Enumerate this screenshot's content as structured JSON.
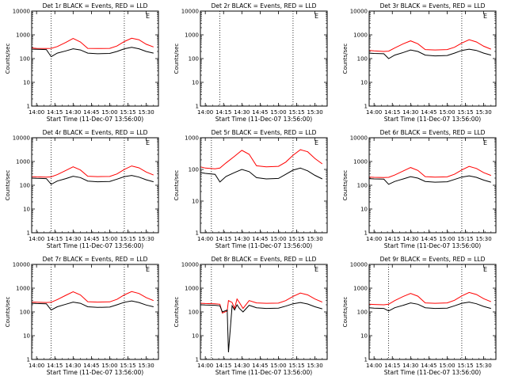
{
  "figure": {
    "start_time_label": "Start Time (11-Dec-07 13:56:00)"
  },
  "colors": {
    "events": "#000000",
    "lld": "#ff0000",
    "axis": "#000000",
    "background": "#ffffff"
  },
  "chart_data": [
    {
      "type": "line",
      "title": "Det 1r BLACK = Events, RED = LLD",
      "xlabel": "Start Time (11-Dec-07 13:56:00)",
      "ylabel": "Counts/sec",
      "x_ticks": [
        "14:00",
        "14:15",
        "14:30",
        "14:45",
        "15:00",
        "15:15",
        "15:30"
      ],
      "y_ticks": [
        "1",
        "10",
        "100",
        "1000",
        "10000"
      ],
      "ylim": [
        1,
        10000
      ],
      "scale": "log",
      "corner_label": "E",
      "has_data": true,
      "markers": [
        "14:12",
        "15:12"
      ],
      "series": [
        {
          "name": "LLD",
          "color": "red",
          "x": [
            "13:56",
            "14:00",
            "14:08",
            "14:12",
            "14:17",
            "14:24",
            "14:30",
            "14:36",
            "14:42",
            "14:50",
            "15:00",
            "15:06",
            "15:12",
            "15:18",
            "15:24",
            "15:30",
            "15:36"
          ],
          "values": [
            280,
            270,
            265,
            270,
            320,
            480,
            700,
            500,
            270,
            265,
            270,
            340,
            520,
            720,
            620,
            400,
            310
          ]
        },
        {
          "name": "Events",
          "color": "black",
          "x": [
            "13:56",
            "14:00",
            "14:08",
            "14:12",
            "14:17",
            "14:24",
            "14:30",
            "14:36",
            "14:42",
            "14:50",
            "15:00",
            "15:06",
            "15:12",
            "15:18",
            "15:24",
            "15:30",
            "15:36"
          ],
          "values": [
            250,
            245,
            240,
            120,
            170,
            210,
            260,
            230,
            170,
            160,
            165,
            200,
            260,
            300,
            260,
            200,
            170
          ]
        }
      ]
    },
    {
      "type": "line",
      "title": "Det 2r BLACK = Events, RED = LLD",
      "xlabel": "Start Time (11-Dec-07 13:56:00)",
      "ylabel": "Counts/sec",
      "x_ticks": [
        "14:00",
        "14:15",
        "14:30",
        "14:45",
        "15:00",
        "15:15",
        "15:30"
      ],
      "y_ticks": [
        "1",
        "10",
        "100",
        "1000",
        "10000"
      ],
      "ylim": [
        1,
        10000
      ],
      "scale": "log",
      "corner_label": "E",
      "has_data": false,
      "markers": [
        "14:12",
        "15:12"
      ],
      "series": []
    },
    {
      "type": "line",
      "title": "Det 3r BLACK = Events, RED = LLD",
      "xlabel": "Start Time (11-Dec-07 13:56:00)",
      "ylabel": "Counts/sec",
      "x_ticks": [
        "14:00",
        "14:15",
        "14:30",
        "14:45",
        "15:00",
        "15:15",
        "15:30"
      ],
      "y_ticks": [
        "1",
        "10",
        "100",
        "1000",
        "10000"
      ],
      "ylim": [
        1,
        10000
      ],
      "scale": "log",
      "corner_label": "E",
      "has_data": true,
      "markers": [
        "15:12"
      ],
      "series": [
        {
          "name": "LLD",
          "color": "red",
          "x": [
            "13:56",
            "14:00",
            "14:08",
            "14:12",
            "14:17",
            "14:24",
            "14:30",
            "14:36",
            "14:42",
            "14:50",
            "15:00",
            "15:06",
            "15:12",
            "15:18",
            "15:24",
            "15:30",
            "15:36"
          ],
          "values": [
            220,
            210,
            200,
            205,
            280,
            420,
            560,
            420,
            240,
            230,
            240,
            300,
            450,
            620,
            500,
            330,
            250
          ]
        },
        {
          "name": "Events",
          "color": "black",
          "x": [
            "13:56",
            "14:00",
            "14:08",
            "14:12",
            "14:17",
            "14:24",
            "14:30",
            "14:36",
            "14:42",
            "14:50",
            "15:00",
            "15:06",
            "15:12",
            "15:18",
            "15:24",
            "15:30",
            "15:36"
          ],
          "values": [
            170,
            165,
            160,
            100,
            140,
            180,
            230,
            200,
            140,
            130,
            135,
            170,
            220,
            250,
            220,
            170,
            140
          ]
        }
      ]
    },
    {
      "type": "line",
      "title": "Det 4r BLACK = Events, RED = LLD",
      "xlabel": "Start Time (11-Dec-07 13:56:00)",
      "ylabel": "Counts/sec",
      "x_ticks": [
        "14:00",
        "14:15",
        "14:30",
        "14:45",
        "15:00",
        "15:15",
        "15:30"
      ],
      "y_ticks": [
        "1",
        "10",
        "100",
        "1000",
        "10000"
      ],
      "ylim": [
        1,
        10000
      ],
      "scale": "log",
      "corner_label": "E",
      "has_data": true,
      "markers": [
        "14:12",
        "15:12"
      ],
      "series": [
        {
          "name": "LLD",
          "color": "red",
          "x": [
            "13:56",
            "14:00",
            "14:08",
            "14:12",
            "14:17",
            "14:24",
            "14:30",
            "14:36",
            "14:42",
            "14:50",
            "15:00",
            "15:06",
            "15:12",
            "15:18",
            "15:24",
            "15:30",
            "15:36"
          ],
          "values": [
            230,
            225,
            220,
            225,
            280,
            420,
            600,
            440,
            240,
            230,
            235,
            300,
            460,
            650,
            540,
            360,
            270
          ]
        },
        {
          "name": "Events",
          "color": "black",
          "x": [
            "13:56",
            "14:00",
            "14:08",
            "14:12",
            "14:17",
            "14:24",
            "14:30",
            "14:36",
            "14:42",
            "14:50",
            "15:00",
            "15:06",
            "15:12",
            "15:18",
            "15:24",
            "15:30",
            "15:36"
          ],
          "values": [
            200,
            195,
            190,
            110,
            150,
            190,
            240,
            210,
            150,
            140,
            145,
            180,
            230,
            260,
            220,
            170,
            140
          ]
        }
      ]
    },
    {
      "type": "line",
      "title": "Det 5r BLACK = Events, RED = LLD",
      "xlabel": "Start Time (11-Dec-07 13:56:00)",
      "ylabel": "Counts/sec",
      "x_ticks": [
        "14:00",
        "14:15",
        "14:30",
        "14:45",
        "15:00",
        "15:15",
        "15:30"
      ],
      "y_ticks": [
        "1",
        "10",
        "100",
        "1000"
      ],
      "ylim": [
        1,
        1000
      ],
      "scale": "log",
      "corner_label": "E",
      "has_data": true,
      "markers": [
        "14:05",
        "15:12"
      ],
      "series": [
        {
          "name": "LLD",
          "color": "red",
          "x": [
            "13:56",
            "14:00",
            "14:08",
            "14:12",
            "14:17",
            "14:24",
            "14:30",
            "14:36",
            "14:42",
            "14:50",
            "15:00",
            "15:06",
            "15:12",
            "15:18",
            "15:24",
            "15:30",
            "15:36"
          ],
          "values": [
            120,
            110,
            105,
            110,
            160,
            260,
            400,
            300,
            130,
            120,
            125,
            170,
            280,
            420,
            360,
            220,
            150
          ]
        },
        {
          "name": "Events",
          "color": "black",
          "x": [
            "13:56",
            "14:00",
            "14:08",
            "14:12",
            "14:17",
            "14:24",
            "14:30",
            "14:36",
            "14:42",
            "14:50",
            "15:00",
            "15:06",
            "15:12",
            "15:18",
            "15:24",
            "15:30",
            "15:36"
          ],
          "values": [
            80,
            75,
            70,
            40,
            60,
            80,
            100,
            85,
            55,
            50,
            52,
            70,
            95,
            110,
            90,
            65,
            50
          ]
        }
      ]
    },
    {
      "type": "line",
      "title": "Det 6r BLACK = Events, RED = LLD",
      "xlabel": "Start Time (11-Dec-07 13:56:00)",
      "ylabel": "Counts/sec",
      "x_ticks": [
        "14:00",
        "14:15",
        "14:30",
        "14:45",
        "15:00",
        "15:15",
        "15:30"
      ],
      "y_ticks": [
        "1",
        "10",
        "100",
        "1000",
        "10000"
      ],
      "ylim": [
        1,
        10000
      ],
      "scale": "log",
      "corner_label": "E",
      "has_data": true,
      "markers": [
        "15:12"
      ],
      "series": [
        {
          "name": "LLD",
          "color": "red",
          "x": [
            "13:56",
            "14:00",
            "14:08",
            "14:12",
            "14:17",
            "14:24",
            "14:30",
            "14:36",
            "14:42",
            "14:50",
            "15:00",
            "15:06",
            "15:12",
            "15:18",
            "15:24",
            "15:30",
            "15:36"
          ],
          "values": [
            220,
            215,
            210,
            215,
            270,
            400,
            560,
            420,
            230,
            220,
            225,
            290,
            440,
            620,
            510,
            340,
            260
          ]
        },
        {
          "name": "Events",
          "color": "black",
          "x": [
            "13:56",
            "14:00",
            "14:08",
            "14:12",
            "14:17",
            "14:24",
            "14:30",
            "14:36",
            "14:42",
            "14:50",
            "15:00",
            "15:06",
            "15:12",
            "15:18",
            "15:24",
            "15:30",
            "15:36"
          ],
          "values": [
            190,
            185,
            180,
            110,
            145,
            185,
            230,
            200,
            145,
            135,
            140,
            175,
            220,
            250,
            215,
            165,
            135
          ]
        }
      ]
    },
    {
      "type": "line",
      "title": "Det 7r BLACK = Events, RED = LLD",
      "xlabel": "Start Time (11-Dec-07 13:56:00)",
      "ylabel": "Counts/sec",
      "x_ticks": [
        "14:00",
        "14:15",
        "14:30",
        "14:45",
        "15:00",
        "15:15",
        "15:30"
      ],
      "y_ticks": [
        "1",
        "10",
        "100",
        "1000",
        "10000"
      ],
      "ylim": [
        1,
        10000
      ],
      "scale": "log",
      "corner_label": "E",
      "has_data": true,
      "markers": [
        "14:12",
        "15:12"
      ],
      "series": [
        {
          "name": "LLD",
          "color": "red",
          "x": [
            "13:56",
            "14:00",
            "14:08",
            "14:12",
            "14:17",
            "14:24",
            "14:30",
            "14:36",
            "14:42",
            "14:50",
            "15:00",
            "15:06",
            "15:12",
            "15:18",
            "15:24",
            "15:30",
            "15:36"
          ],
          "values": [
            260,
            255,
            250,
            255,
            330,
            500,
            700,
            520,
            270,
            260,
            265,
            340,
            520,
            720,
            600,
            400,
            300
          ]
        },
        {
          "name": "Events",
          "color": "black",
          "x": [
            "13:56",
            "14:00",
            "14:08",
            "14:12",
            "14:17",
            "14:24",
            "14:30",
            "14:36",
            "14:42",
            "14:50",
            "15:00",
            "15:06",
            "15:12",
            "15:18",
            "15:24",
            "15:30",
            "15:36"
          ],
          "values": [
            230,
            225,
            220,
            120,
            165,
            210,
            260,
            230,
            165,
            155,
            160,
            200,
            255,
            290,
            250,
            195,
            165
          ]
        }
      ]
    },
    {
      "type": "line",
      "title": "Det 8r BLACK = Events, RED = LLD",
      "xlabel": "Start Time (11-Dec-07 13:56:00)",
      "ylabel": "Counts/sec",
      "x_ticks": [
        "14:00",
        "14:15",
        "14:30",
        "14:45",
        "15:00",
        "15:15",
        "15:30"
      ],
      "y_ticks": [
        "1",
        "10",
        "100",
        "1000",
        "10000"
      ],
      "ylim": [
        1,
        10000
      ],
      "scale": "log",
      "corner_label": "E",
      "has_data": true,
      "markers": [
        "14:05",
        "15:12"
      ],
      "series": [
        {
          "name": "LLD",
          "color": "red",
          "x": [
            "13:56",
            "14:00",
            "14:08",
            "14:12",
            "14:14",
            "14:18",
            "14:19",
            "14:22",
            "14:24",
            "14:26",
            "14:28",
            "14:31",
            "14:36",
            "14:42",
            "14:50",
            "15:00",
            "15:06",
            "15:12",
            "15:18",
            "15:24",
            "15:30",
            "15:36"
          ],
          "values": [
            230,
            225,
            220,
            210,
            90,
            110,
            300,
            250,
            140,
            350,
            250,
            140,
            300,
            240,
            230,
            235,
            300,
            450,
            620,
            520,
            350,
            260
          ]
        },
        {
          "name": "Events",
          "color": "black",
          "x": [
            "13:56",
            "14:00",
            "14:08",
            "14:12",
            "14:14",
            "14:18",
            "14:19",
            "14:22",
            "14:24",
            "14:26",
            "14:28",
            "14:31",
            "14:36",
            "14:42",
            "14:50",
            "15:00",
            "15:06",
            "15:12",
            "15:18",
            "15:24",
            "15:30",
            "15:36"
          ],
          "values": [
            200,
            195,
            190,
            180,
            100,
            120,
            2,
            180,
            120,
            200,
            140,
            100,
            190,
            150,
            140,
            145,
            175,
            220,
            250,
            215,
            165,
            135
          ]
        }
      ]
    },
    {
      "type": "line",
      "title": "Det 9r BLACK = Events, RED = LLD",
      "xlabel": "Start Time (11-Dec-07 13:56:00)",
      "ylabel": "Counts/sec",
      "x_ticks": [
        "14:00",
        "14:15",
        "14:30",
        "14:45",
        "15:00",
        "15:15",
        "15:30"
      ],
      "y_ticks": [
        "1",
        "10",
        "100",
        "1000",
        "10000"
      ],
      "ylim": [
        1,
        10000
      ],
      "scale": "log",
      "corner_label": "E",
      "has_data": true,
      "markers": [
        "14:12",
        "15:12"
      ],
      "series": [
        {
          "name": "LLD",
          "color": "red",
          "x": [
            "13:56",
            "14:00",
            "14:08",
            "14:12",
            "14:17",
            "14:24",
            "14:30",
            "14:36",
            "14:42",
            "14:50",
            "15:00",
            "15:06",
            "15:12",
            "15:18",
            "15:24",
            "15:30",
            "15:36"
          ],
          "values": [
            210,
            205,
            200,
            210,
            300,
            450,
            600,
            460,
            240,
            230,
            240,
            310,
            470,
            660,
            540,
            360,
            270
          ]
        },
        {
          "name": "Events",
          "color": "black",
          "x": [
            "13:56",
            "14:00",
            "14:08",
            "14:12",
            "14:17",
            "14:24",
            "14:30",
            "14:36",
            "14:42",
            "14:50",
            "15:00",
            "15:06",
            "15:12",
            "15:18",
            "15:24",
            "15:30",
            "15:36"
          ],
          "values": [
            150,
            145,
            140,
            110,
            150,
            190,
            240,
            210,
            150,
            140,
            145,
            180,
            230,
            260,
            220,
            170,
            140
          ]
        }
      ]
    }
  ]
}
